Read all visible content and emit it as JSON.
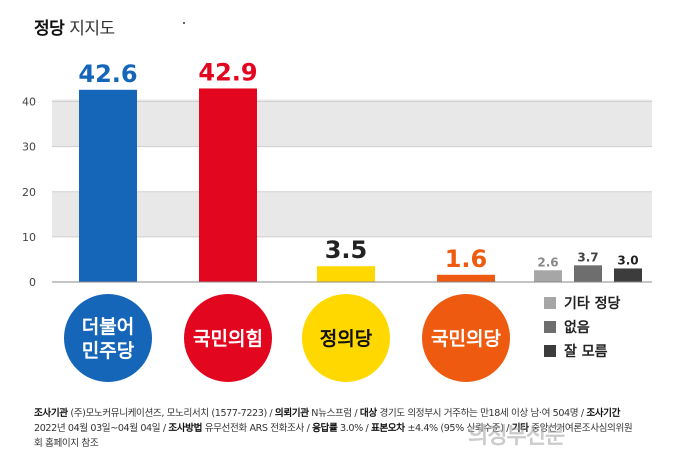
{
  "title": {
    "bold": "정당",
    "light": "지지도"
  },
  "chart_data": {
    "type": "bar",
    "categories": [
      "더불어민주당",
      "국민의힘",
      "정의당",
      "국민의당",
      "기타 정당",
      "없음",
      "잘 모름"
    ],
    "values": [
      42.6,
      42.9,
      3.5,
      1.6,
      2.6,
      3.7,
      3.0
    ],
    "value_labels": [
      "42.6",
      "42.9",
      "3.5",
      "1.6",
      "2.6",
      "3.7",
      "3.0"
    ],
    "ylim": [
      0,
      43
    ],
    "yticks": [
      "0",
      "10",
      "20",
      "30",
      "40"
    ],
    "ytick_values": [
      0,
      10,
      20,
      30,
      40
    ],
    "colors": [
      "#1565b8",
      "#e3061f",
      "#ffd800",
      "#ee5a0f",
      "#a6a6a6",
      "#6e6e6e",
      "#3c3c3c"
    ],
    "label_colors": [
      "#1565b8",
      "#e3061f",
      "#222222",
      "#ee5a0f",
      "#888888",
      "#444444",
      "#222222"
    ],
    "party_circles": [
      {
        "lines": [
          "더불어",
          "민주당"
        ],
        "color": "#1565b8",
        "text_color": "#ffffff"
      },
      {
        "lines": [
          "국민의힘"
        ],
        "color": "#e3061f",
        "text_color": "#ffffff"
      },
      {
        "lines": [
          "정의당"
        ],
        "color": "#ffd800",
        "text_color": "#111111"
      },
      {
        "lines": [
          "국민의당"
        ],
        "color": "#ee5a0f",
        "text_color": "#ffffff"
      }
    ],
    "legend": [
      {
        "label": "기타 정당",
        "color": "#a6a6a6"
      },
      {
        "label": "없음",
        "color": "#6e6e6e"
      },
      {
        "label": "잘 모름",
        "color": "#3c3c3c"
      }
    ],
    "grid": true
  },
  "footer": {
    "l1_k1": "조사기관",
    "l1_v1": "(주)모노커뮤니케이션즈, 모노리서치 (1577-7223) /",
    "l1_k2": "의뢰기관",
    "l1_v2": "N뉴스프럼 /",
    "l1_k3": "대상",
    "l1_v3": "경기도 의정부시 거주하는 만18세 이상 남·여 504명 /",
    "l1_k4": "조사기간",
    "l2_v0": "2022년 04월 03일~04월 04일 /",
    "l2_k1": "조사방법",
    "l2_v1": "유무선전화 ARS 전화조사 /",
    "l2_k2": "응답률",
    "l2_v2": "3.0% /",
    "l2_k3": "표본오차",
    "l2_v3": "±4.4% (95% 신뢰수준) /",
    "l2_k4": "기타",
    "l2_v4": "중앙선거여론조사심의위원",
    "l3_v0": "회 홈페이지 참조"
  },
  "watermark": "의정부신문"
}
